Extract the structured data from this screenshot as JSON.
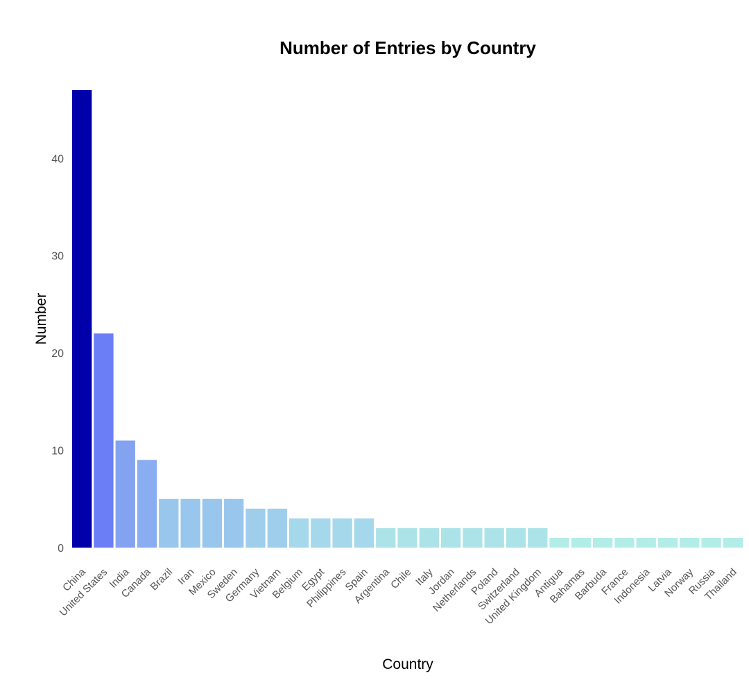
{
  "chart_data": {
    "type": "bar",
    "title": "Number of Entries by Country",
    "xlabel": "Country",
    "ylabel": "Number",
    "ylim": [
      0,
      47
    ],
    "yticks": [
      "0",
      "10",
      "20",
      "30",
      "40"
    ],
    "grid": false,
    "legend": "none",
    "categories": [
      "China",
      "United States",
      "India",
      "Canada",
      "Brazil",
      "Iran",
      "Mexico",
      "Sweden",
      "Germany",
      "Vietnam",
      "Belgium",
      "Egypt",
      "Philippines",
      "Spain",
      "Argentina",
      "Chile",
      "Italy",
      "Jordan",
      "Netherlands",
      "Poland",
      "Switzerland",
      "United Kingdom",
      "Antigua",
      "Bahamas",
      "Barbuda",
      "France",
      "Indonesia",
      "Latvia",
      "Norway",
      "Russia",
      "Thailand"
    ],
    "values": [
      47,
      22,
      11,
      9,
      5,
      5,
      5,
      5,
      4,
      4,
      3,
      3,
      3,
      3,
      2,
      2,
      2,
      2,
      2,
      2,
      2,
      2,
      1,
      1,
      1,
      1,
      1,
      1,
      1,
      1,
      1
    ],
    "colors": {
      "max": "#0000aa",
      "second": "#6b7ef5",
      "low_end": "#b2ede8"
    }
  }
}
